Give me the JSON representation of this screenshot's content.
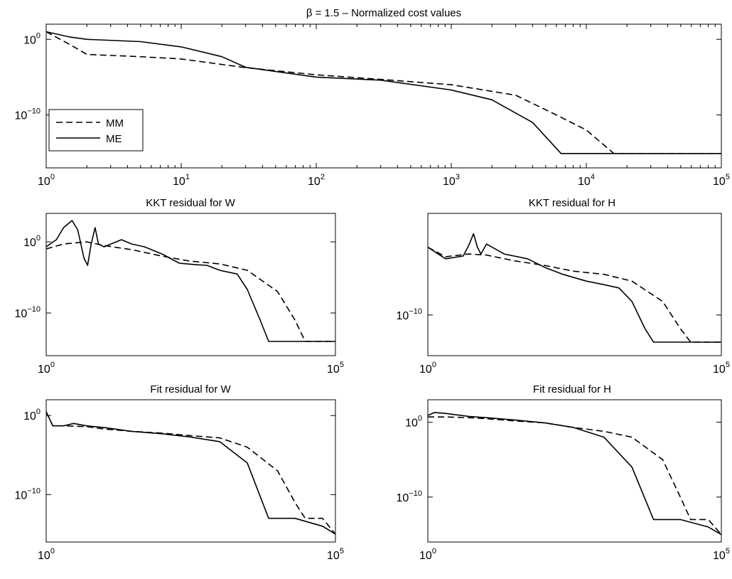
{
  "chart_data": [
    {
      "type": "line",
      "title": "β = 1.5 – Normalized cost values",
      "x_scale": "log",
      "y_scale": "log",
      "xlim": [
        1,
        100000
      ],
      "ylim": [
        1e-17,
        100.0
      ],
      "x_ticks": [
        {
          "base": "10",
          "exp": "0",
          "v": 1
        },
        {
          "base": "10",
          "exp": "1",
          "v": 10
        },
        {
          "base": "10",
          "exp": "2",
          "v": 100
        },
        {
          "base": "10",
          "exp": "3",
          "v": 1000
        },
        {
          "base": "10",
          "exp": "4",
          "v": 10000
        },
        {
          "base": "10",
          "exp": "5",
          "v": 100000
        }
      ],
      "y_ticks": [
        {
          "base": "10",
          "exp": "0",
          "v": 1
        },
        {
          "base": "10",
          "exp": "−10",
          "v": 1e-10
        }
      ],
      "legend": {
        "position": "lower-left",
        "entries": [
          {
            "label": "MM",
            "style": "dashed"
          },
          {
            "label": "ME",
            "style": "solid"
          }
        ]
      },
      "series": [
        {
          "name": "MM",
          "style": "dashed",
          "x": [
            1,
            1.5,
            2,
            5,
            10,
            30,
            100,
            300,
            1000,
            3000,
            6000,
            10000,
            16000,
            100000
          ],
          "y": [
            10,
            0.2,
            0.01,
            0.005,
            0.0025,
            0.00018,
            2e-05,
            5e-06,
            1e-06,
            4e-08,
            1e-10,
            1e-12,
            8e-16,
            8e-16
          ]
        },
        {
          "name": "ME",
          "style": "solid",
          "x": [
            1,
            1.5,
            2,
            5,
            10,
            20,
            30,
            100,
            300,
            1000,
            2000,
            4000,
            6500,
            100000
          ],
          "y": [
            10,
            2,
            1,
            0.5,
            0.1,
            0.005,
            0.0002,
            1e-05,
            4e-06,
            2e-07,
            1e-08,
            1e-11,
            8e-16,
            8e-16
          ]
        }
      ]
    },
    {
      "type": "line",
      "title": "KKT residual for W",
      "x_scale": "log",
      "y_scale": "log",
      "xlim": [
        1,
        100000
      ],
      "ylim": [
        1e-16,
        10000.0
      ],
      "x_ticks": [
        {
          "base": "10",
          "exp": "0",
          "v": 1
        },
        {
          "base": "10",
          "exp": "5",
          "v": 100000
        }
      ],
      "y_ticks": [
        {
          "base": "10",
          "exp": "0",
          "v": 1
        },
        {
          "base": "10",
          "exp": "−10",
          "v": 1e-10
        }
      ],
      "series": [
        {
          "name": "MM",
          "style": "dashed",
          "x": [
            1,
            2,
            5,
            10,
            30,
            100,
            300,
            1000,
            3000,
            10000,
            20000,
            30000,
            100000
          ],
          "y": [
            0.1,
            0.5,
            1,
            0.3,
            0.08,
            0.01,
            0.002,
            0.0008,
            0.0001,
            1e-07,
            1e-11,
            1e-14,
            1e-14
          ]
        },
        {
          "name": "ME",
          "style": "solid",
          "x": [
            1,
            1.5,
            2,
            2.8,
            3.5,
            4.5,
            5.2,
            6,
            7,
            8,
            10,
            20,
            30,
            50,
            100,
            200,
            400,
            600,
            1000,
            2000,
            3000,
            5000,
            7000,
            100000
          ],
          "y": [
            0.2,
            2,
            100,
            1000,
            50,
            0.005,
            0.0005,
            0.5,
            100,
            0.5,
            0.2,
            2,
            0.5,
            0.2,
            0.02,
            0.001,
            0.0006,
            0.0005,
            0.0001,
            3e-05,
            2e-07,
            1e-11,
            1e-14,
            1e-14
          ]
        }
      ]
    },
    {
      "type": "line",
      "title": "KKT residual for H",
      "x_scale": "log",
      "y_scale": "log",
      "xlim": [
        1,
        100000
      ],
      "ylim": [
        1e-16,
        100000.0
      ],
      "x_ticks": [
        {
          "base": "10",
          "exp": "0",
          "v": 1
        },
        {
          "base": "10",
          "exp": "5",
          "v": 100000
        }
      ],
      "y_ticks": [
        {
          "base": "10",
          "exp": "−10",
          "v": 1e-10
        }
      ],
      "series": [
        {
          "name": "MM",
          "style": "dashed",
          "x": [
            1,
            2,
            5,
            10,
            30,
            100,
            300,
            1000,
            3000,
            10000,
            20000,
            30000,
            100000
          ],
          "y": [
            1,
            0.04,
            0.1,
            0.07,
            0.01,
            0.002,
            0.0003,
            0.0001,
            1e-05,
            1e-08,
            1e-12,
            1e-14,
            1e-14
          ]
        },
        {
          "name": "ME",
          "style": "solid",
          "x": [
            1,
            2,
            4,
            5,
            6,
            7,
            8,
            10,
            20,
            50,
            100,
            200,
            500,
            1000,
            1800,
            3000,
            5000,
            7000,
            100000
          ],
          "y": [
            1,
            0.02,
            0.05,
            2,
            100,
            1,
            0.1,
            3,
            0.1,
            0.02,
            0.001,
            0.0001,
            1e-05,
            3e-06,
            1e-06,
            1e-08,
            1e-12,
            1e-14,
            1e-14
          ]
        }
      ]
    },
    {
      "type": "line",
      "title": "Fit residual for W",
      "x_scale": "log",
      "y_scale": "log",
      "xlim": [
        1,
        100000
      ],
      "ylim": [
        1e-16,
        100.0
      ],
      "x_ticks": [
        {
          "base": "10",
          "exp": "0",
          "v": 1
        },
        {
          "base": "10",
          "exp": "5",
          "v": 100000
        }
      ],
      "y_ticks": [
        {
          "base": "10",
          "exp": "0",
          "v": 1
        },
        {
          "base": "10",
          "exp": "−10",
          "v": 1e-10
        }
      ],
      "series": [
        {
          "name": "MM",
          "style": "dashed",
          "x": [
            1,
            1.3,
            2,
            5,
            10,
            30,
            100,
            300,
            1000,
            3000,
            10000,
            20000,
            30000,
            60000,
            100000
          ],
          "y": [
            3,
            0.05,
            0.05,
            0.04,
            0.02,
            0.01,
            0.006,
            0.003,
            0.0015,
            0.0001,
            1e-07,
            1e-11,
            1e-13,
            1e-13,
            1e-15
          ]
        },
        {
          "name": "ME",
          "style": "solid",
          "x": [
            1,
            1.3,
            2,
            3,
            5,
            10,
            30,
            100,
            300,
            1000,
            3000,
            7000,
            20000,
            60000,
            100000
          ],
          "y": [
            3,
            0.05,
            0.05,
            0.1,
            0.05,
            0.03,
            0.01,
            0.005,
            0.002,
            0.0005,
            1e-06,
            1e-13,
            1e-13,
            1e-14,
            1e-15
          ]
        }
      ]
    },
    {
      "type": "line",
      "title": "Fit residual for H",
      "x_scale": "log",
      "y_scale": "log",
      "xlim": [
        1,
        100000
      ],
      "ylim": [
        1e-16,
        1000.0
      ],
      "x_ticks": [
        {
          "base": "10",
          "exp": "0",
          "v": 1
        },
        {
          "base": "10",
          "exp": "5",
          "v": 100000
        }
      ],
      "y_ticks": [
        {
          "base": "10",
          "exp": "0",
          "v": 1
        },
        {
          "base": "10",
          "exp": "−10",
          "v": 1e-10
        }
      ],
      "series": [
        {
          "name": "MM",
          "style": "dashed",
          "x": [
            1,
            2,
            5,
            10,
            30,
            100,
            300,
            1000,
            3000,
            10000,
            20000,
            30000,
            60000,
            100000
          ],
          "y": [
            5,
            5,
            4,
            3,
            1.5,
            0.8,
            0.2,
            0.06,
            0.01,
            1e-05,
            1e-10,
            1e-13,
            1e-13,
            1e-15
          ]
        },
        {
          "name": "ME",
          "style": "solid",
          "x": [
            1,
            1.3,
            2,
            3,
            5,
            10,
            30,
            100,
            300,
            1000,
            3000,
            7000,
            20000,
            60000,
            100000
          ],
          "y": [
            8,
            20,
            15,
            10,
            6,
            4,
            2,
            0.8,
            0.2,
            0.01,
            1e-06,
            1e-13,
            1e-13,
            1e-14,
            1e-15
          ]
        }
      ]
    }
  ]
}
